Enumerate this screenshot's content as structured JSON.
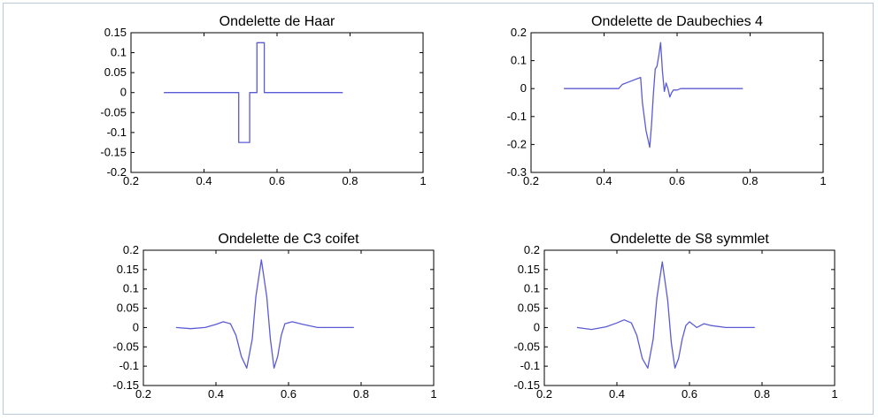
{
  "figure": {
    "line_color": "#5b5bd6"
  },
  "chart_data": [
    {
      "type": "line",
      "title": "Ondelette de Haar",
      "xlabel": "",
      "ylabel": "",
      "xlim": [
        0.2,
        1
      ],
      "ylim": [
        -0.2,
        0.15
      ],
      "xticks": [
        0.2,
        0.4,
        0.6,
        0.8,
        1
      ],
      "xtick_labels": [
        "0.2",
        "0.4",
        "0.6",
        "0.8",
        "1"
      ],
      "yticks": [
        -0.2,
        -0.15,
        -0.1,
        -0.05,
        0,
        0.05,
        0.1,
        0.15
      ],
      "ytick_labels": [
        "-0.2",
        "-0.15",
        "-0.1",
        "-0.05",
        "0",
        "0.05",
        "0.1",
        "0.15"
      ],
      "grid": false,
      "series": [
        {
          "x": [
            0.29,
            0.495,
            0.495,
            0.525,
            0.525,
            0.545,
            0.545,
            0.565,
            0.565,
            0.78
          ],
          "y": [
            0,
            0,
            -0.125,
            -0.125,
            0,
            0,
            0.125,
            0.125,
            0,
            0
          ]
        }
      ]
    },
    {
      "type": "line",
      "title": "Ondelette de Daubechies 4",
      "xlabel": "",
      "ylabel": "",
      "xlim": [
        0.2,
        1
      ],
      "ylim": [
        -0.3,
        0.2
      ],
      "xticks": [
        0.2,
        0.4,
        0.6,
        0.8,
        1
      ],
      "xtick_labels": [
        "0.2",
        "0.4",
        "0.6",
        "0.8",
        "1"
      ],
      "yticks": [
        -0.3,
        -0.2,
        -0.1,
        0,
        0.1,
        0.2
      ],
      "ytick_labels": [
        "-0.3",
        "-0.2",
        "-0.1",
        "0",
        "0.1",
        "0.2"
      ],
      "grid": false,
      "series": [
        {
          "x": [
            0.29,
            0.44,
            0.45,
            0.47,
            0.49,
            0.5,
            0.505,
            0.515,
            0.525,
            0.53,
            0.535,
            0.54,
            0.545,
            0.55,
            0.555,
            0.56,
            0.565,
            0.57,
            0.575,
            0.58,
            0.585,
            0.59,
            0.6,
            0.61,
            0.78
          ],
          "y": [
            0,
            0,
            0.015,
            0.025,
            0.035,
            0.04,
            -0.05,
            -0.15,
            -0.21,
            -0.13,
            -0.02,
            0.07,
            0.08,
            0.12,
            0.165,
            0.06,
            -0.01,
            0.02,
            0.0,
            -0.03,
            -0.015,
            -0.005,
            -0.005,
            0,
            0
          ]
        }
      ]
    },
    {
      "type": "line",
      "title": "Ondelette de C3 coifet",
      "xlabel": "",
      "ylabel": "",
      "xlim": [
        0.2,
        1
      ],
      "ylim": [
        -0.15,
        0.2
      ],
      "xticks": [
        0.2,
        0.4,
        0.6,
        0.8,
        1
      ],
      "xtick_labels": [
        "0.2",
        "0.4",
        "0.6",
        "0.8",
        "1"
      ],
      "yticks": [
        -0.15,
        -0.1,
        -0.05,
        0,
        0.05,
        0.1,
        0.15,
        0.2
      ],
      "ytick_labels": [
        "-0.15",
        "-0.1",
        "-0.05",
        "0",
        "0.05",
        "0.1",
        "0.15",
        "0.2"
      ],
      "grid": false,
      "series": [
        {
          "x": [
            0.29,
            0.33,
            0.37,
            0.4,
            0.42,
            0.44,
            0.455,
            0.47,
            0.485,
            0.5,
            0.51,
            0.525,
            0.54,
            0.55,
            0.56,
            0.57,
            0.58,
            0.59,
            0.61,
            0.64,
            0.68,
            0.72,
            0.78
          ],
          "y": [
            0,
            -0.003,
            0.0,
            0.008,
            0.015,
            0.01,
            -0.02,
            -0.075,
            -0.105,
            -0.03,
            0.08,
            0.175,
            0.08,
            -0.03,
            -0.105,
            -0.075,
            -0.02,
            0.01,
            0.015,
            0.008,
            0.0,
            0,
            0
          ]
        }
      ]
    },
    {
      "type": "line",
      "title": "Ondelette de S8 symmlet",
      "xlabel": "",
      "ylabel": "",
      "xlim": [
        0.2,
        1
      ],
      "ylim": [
        -0.15,
        0.2
      ],
      "xticks": [
        0.2,
        0.4,
        0.6,
        0.8,
        1
      ],
      "xtick_labels": [
        "0.2",
        "0.4",
        "0.6",
        "0.8",
        "1"
      ],
      "yticks": [
        -0.15,
        -0.1,
        -0.05,
        0,
        0.05,
        0.1,
        0.15,
        0.2
      ],
      "ytick_labels": [
        "-0.15",
        "-0.1",
        "-0.05",
        "0",
        "0.05",
        "0.1",
        "0.15",
        "0.2"
      ],
      "grid": false,
      "series": [
        {
          "x": [
            0.29,
            0.33,
            0.37,
            0.4,
            0.42,
            0.44,
            0.455,
            0.47,
            0.485,
            0.5,
            0.51,
            0.525,
            0.54,
            0.55,
            0.56,
            0.57,
            0.58,
            0.59,
            0.6,
            0.62,
            0.64,
            0.66,
            0.7,
            0.74,
            0.78
          ],
          "y": [
            0,
            -0.005,
            0.002,
            0.012,
            0.02,
            0.012,
            -0.02,
            -0.08,
            -0.105,
            -0.03,
            0.075,
            0.17,
            0.07,
            -0.04,
            -0.105,
            -0.08,
            -0.03,
            0.005,
            0.015,
            0.0,
            0.01,
            0.005,
            0.0,
            0,
            0
          ]
        }
      ]
    }
  ]
}
